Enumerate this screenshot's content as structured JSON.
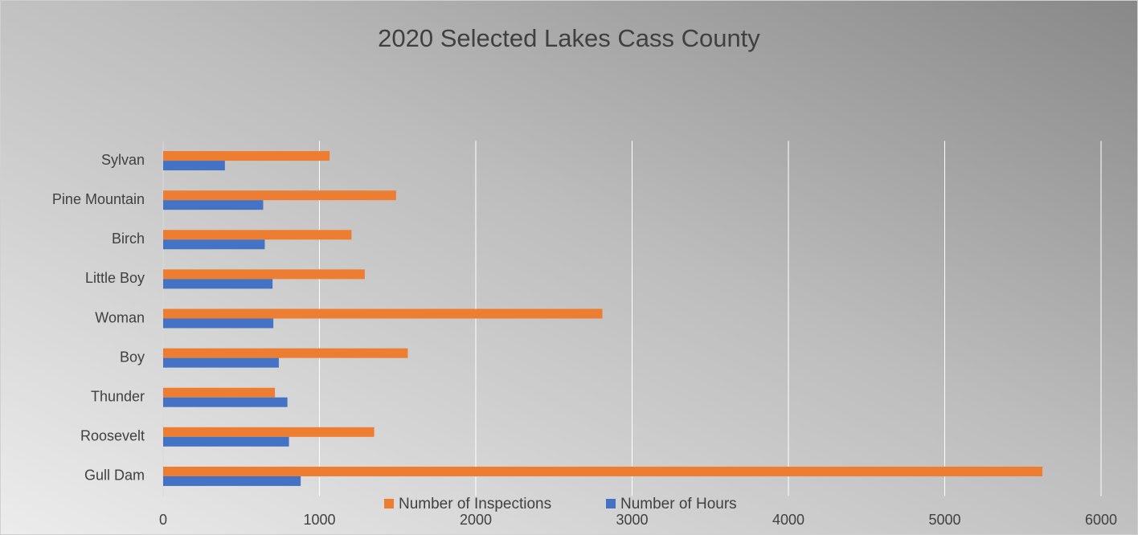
{
  "chart_data": {
    "type": "hbar",
    "title": "2020 Selected Lakes Cass County",
    "categories": [
      "Gull Dam",
      "Roosevelt",
      "Thunder",
      "Boy",
      "Woman",
      "Little Boy",
      "Birch",
      "Pine Mountain",
      "Sylvan"
    ],
    "series": [
      {
        "name": "Number of Inspections",
        "color": "#ed7d31",
        "values": [
          5625,
          1350,
          715,
          1565,
          2810,
          1290,
          1205,
          1490,
          1065
        ]
      },
      {
        "name": "Number of Hours",
        "color": "#4472c4",
        "values": [
          880,
          805,
          795,
          740,
          705,
          700,
          650,
          640,
          395
        ]
      }
    ],
    "xlim": [
      0,
      6000
    ],
    "xticks": [
      0,
      1000,
      2000,
      3000,
      4000,
      5000,
      6000
    ],
    "grid": true,
    "legend": "bottom"
  }
}
